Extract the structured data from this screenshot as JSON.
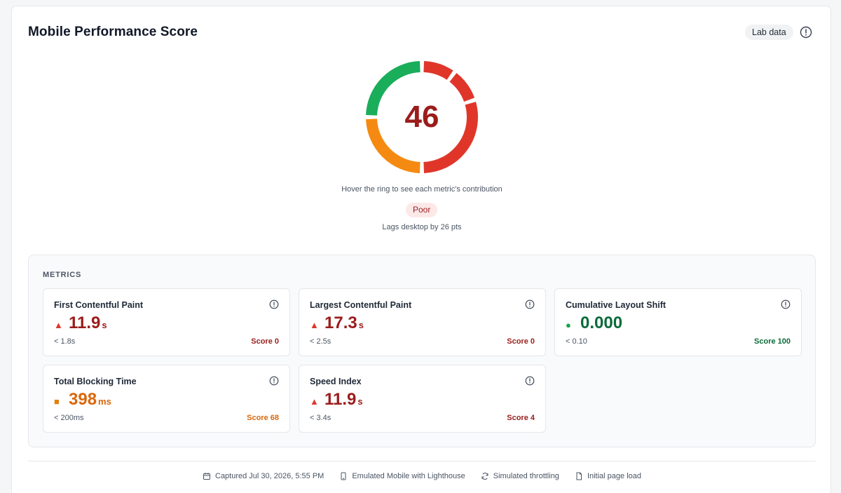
{
  "header": {
    "title": "Mobile Performance Score",
    "badge": "Lab data",
    "info_icon": "info-icon"
  },
  "gauge": {
    "score": "46",
    "hint": "Hover the ring to see each metric's contribution",
    "rating": "Poor",
    "comparison": "Lags desktop by 26 pts",
    "segments": [
      {
        "metric": "First Contentful Paint",
        "share": 0.1,
        "color": "#e0362a"
      },
      {
        "metric": "Largest Contentful Paint",
        "share": 0.1,
        "color": "#e0362a"
      },
      {
        "metric": "Speed Index",
        "share": 0.3,
        "color": "#e0362a"
      },
      {
        "metric": "Total Blocking Time",
        "share": 0.25,
        "color": "#f58a12"
      },
      {
        "metric": "Cumulative Layout Shift",
        "share": 0.25,
        "color": "#1aad5a"
      }
    ]
  },
  "metrics": {
    "heading": "METRICS",
    "items": [
      {
        "name": "First Contentful Paint",
        "indicator": "▲",
        "value": "11.9",
        "unit": "s",
        "threshold": "< 1.8s",
        "score": "Score 0",
        "status": "poor"
      },
      {
        "name": "Largest Contentful Paint",
        "indicator": "▲",
        "value": "17.3",
        "unit": "s",
        "threshold": "< 2.5s",
        "score": "Score 0",
        "status": "poor"
      },
      {
        "name": "Cumulative Layout Shift",
        "indicator": "●",
        "value": "0.000",
        "unit": "",
        "threshold": "< 0.10",
        "score": "Score 100",
        "status": "good"
      },
      {
        "name": "Total Blocking Time",
        "indicator": "■",
        "value": "398",
        "unit": "ms",
        "threshold": "< 200ms",
        "score": "Score 68",
        "status": "average"
      },
      {
        "name": "Speed Index",
        "indicator": "▲",
        "value": "11.9",
        "unit": "s",
        "threshold": "< 3.4s",
        "score": "Score 4",
        "status": "poor"
      }
    ]
  },
  "footer": {
    "captured": "Captured Jul 30, 2026, 5:55 PM",
    "device": "Emulated Mobile with Lighthouse",
    "throttling": "Simulated throttling",
    "load": "Initial page load"
  },
  "colors": {
    "poor": "#e0362a",
    "average": "#f58a12",
    "good": "#1aad5a"
  }
}
